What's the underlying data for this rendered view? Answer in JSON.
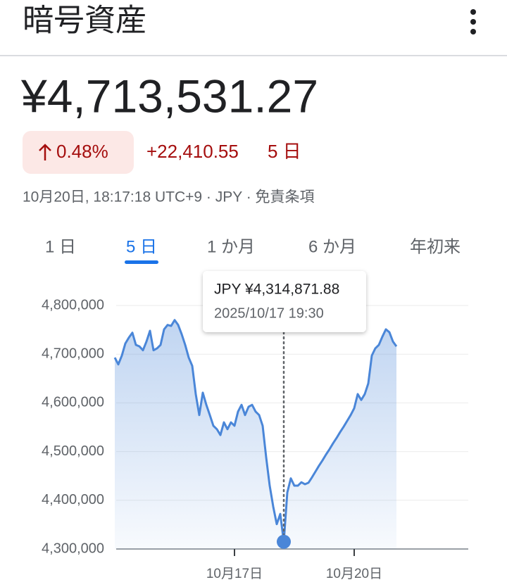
{
  "header": {
    "title": "暗号資産"
  },
  "quote": {
    "price": "¥4,713,531.27",
    "change_percent": "0.48%",
    "change_amount": "+22,410.55",
    "period": "5 日",
    "timestamp": "10月20日, 18:17:18 UTC+9 · JPY · 免責条項"
  },
  "tabs": [
    "1 日",
    "5 日",
    "1 か月",
    "6 か月",
    "年初来"
  ],
  "selected_tab": 1,
  "tooltip": {
    "label": "JPY ¥4,314,871.88",
    "date": "2025/10/17 19:30"
  },
  "chart_data": {
    "type": "line",
    "color": "#4a86d8",
    "categories": [
      null,
      null,
      null,
      null,
      null,
      null,
      null,
      null,
      null,
      null,
      null,
      null,
      null,
      null,
      null,
      null,
      null,
      null,
      null,
      null,
      null,
      null,
      null,
      null,
      null,
      null,
      null,
      null,
      null,
      null,
      null,
      null,
      null,
      null,
      "10月17日",
      null,
      null,
      null,
      null,
      null,
      null,
      null,
      null,
      null,
      null,
      null,
      null,
      null,
      null,
      null,
      null,
      null,
      null,
      null,
      null,
      null,
      null,
      null,
      null,
      null,
      null,
      null,
      null,
      null,
      null,
      null,
      null,
      null,
      "10月20日",
      null,
      null,
      null,
      null,
      null,
      null,
      null,
      null,
      null,
      null,
      null,
      null
    ],
    "values": [
      4693000,
      4679000,
      4697000,
      4722000,
      4734000,
      4744000,
      4719000,
      4716000,
      4708000,
      4726000,
      4748000,
      4708000,
      4712000,
      4719000,
      4751000,
      4760000,
      4758000,
      4770000,
      4760000,
      4741000,
      4719000,
      4693000,
      4676000,
      4618000,
      4575000,
      4621000,
      4596000,
      4575000,
      4553000,
      4546000,
      4534000,
      4560000,
      4546000,
      4560000,
      4553000,
      4582000,
      4596000,
      4575000,
      4592000,
      4596000,
      4582000,
      4575000,
      4553000,
      4488000,
      4430000,
      4387000,
      4351000,
      4372000,
      4314871.88,
      4416000,
      4445000,
      4430000,
      4430000,
      4437000,
      4433000,
      4436000,
      4447000,
      4459000,
      4471000,
      4482000,
      4494000,
      4505000,
      4517000,
      4528000,
      4540000,
      4551000,
      4563000,
      4575000,
      4589000,
      4618000,
      4606000,
      4618000,
      4640000,
      4697000,
      4712000,
      4719000,
      4736000,
      4751000,
      4745000,
      4726000,
      4716000
    ],
    "highlight": 48,
    "ylim": [
      4300000,
      4800000
    ],
    "yticks": [
      {
        "value": 4300000,
        "label": "4,300,000"
      },
      {
        "value": 4400000,
        "label": "4,400,000"
      },
      {
        "value": 4500000,
        "label": "4,500,000"
      },
      {
        "value": 4600000,
        "label": "4,600,000"
      },
      {
        "value": 4700000,
        "label": "4,700,000"
      },
      {
        "value": 4800000,
        "label": "4,800,000"
      }
    ],
    "grid": true
  }
}
